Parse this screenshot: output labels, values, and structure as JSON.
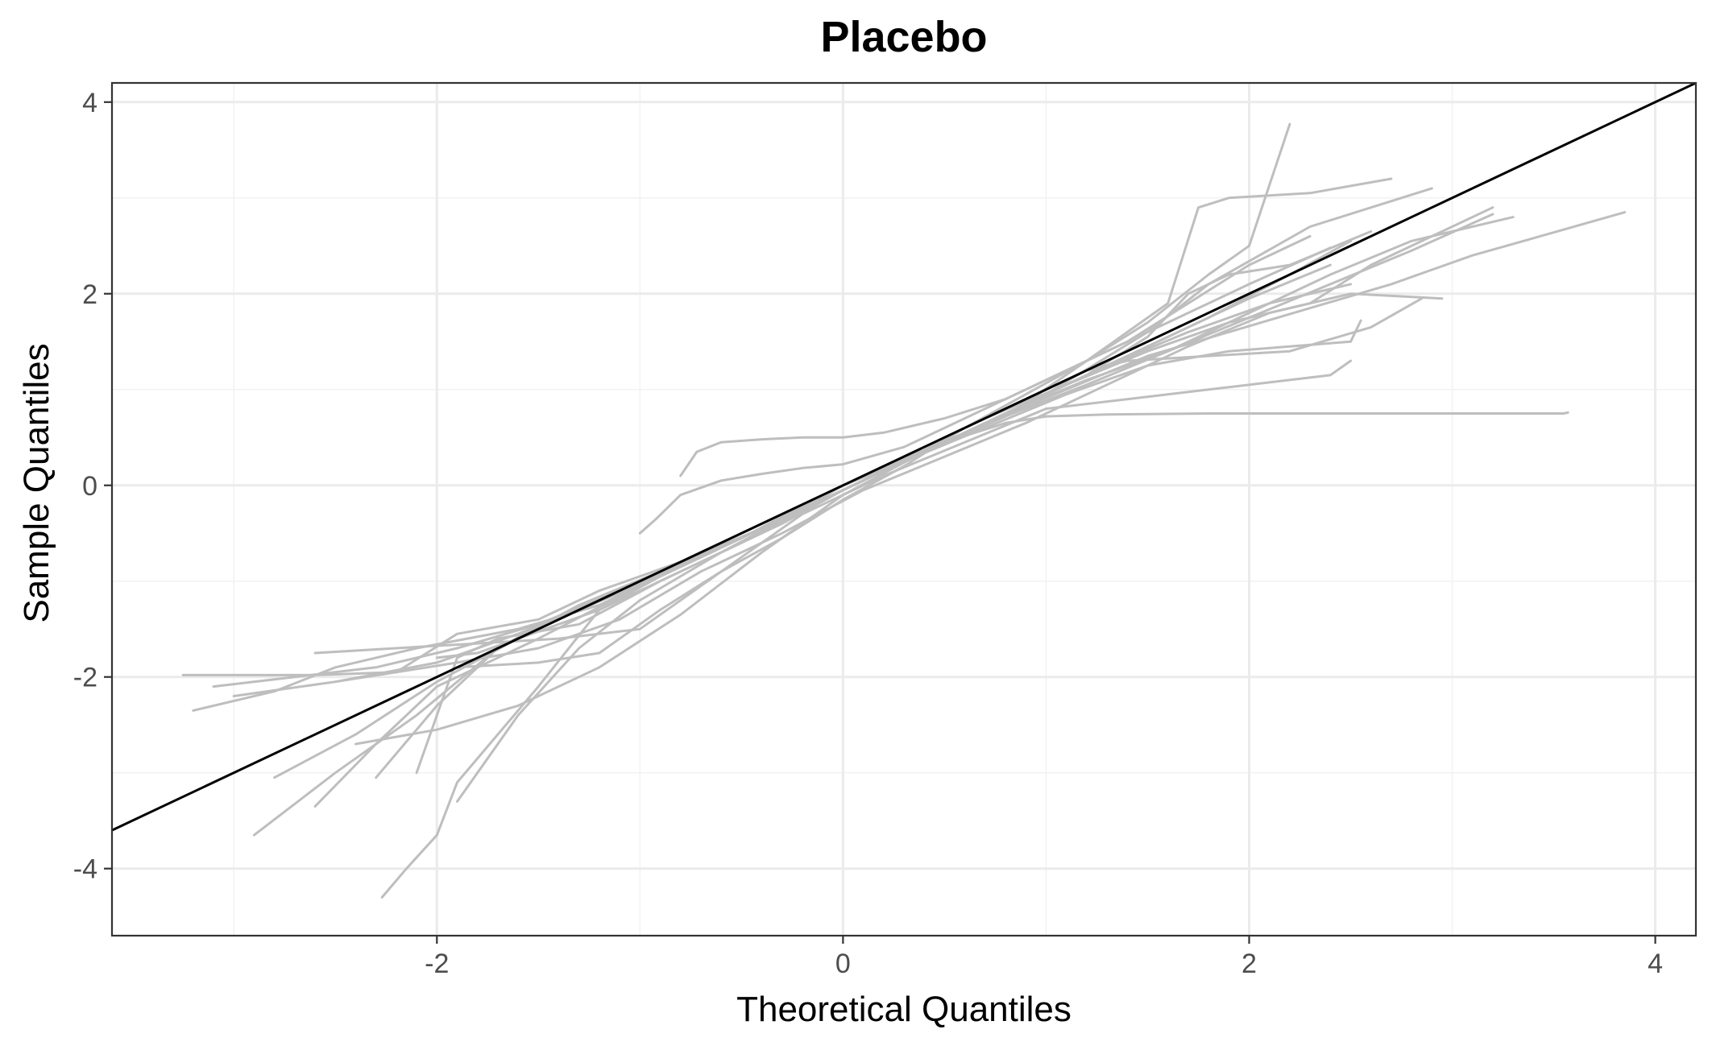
{
  "chart_data": {
    "type": "line",
    "title": "Placebo",
    "xlabel": "Theoretical Quantiles",
    "ylabel": "Sample Quantiles",
    "xlim": [
      -3.6,
      4.2
    ],
    "ylim": [
      -4.7,
      4.2
    ],
    "x_ticks": [
      -2,
      0,
      2,
      4
    ],
    "x_tick_labels": [
      "-2",
      "0",
      "2",
      "4"
    ],
    "y_ticks": [
      -4,
      -2,
      0,
      2,
      4
    ],
    "y_tick_labels": [
      "-4",
      "-2",
      "0",
      "2",
      "4"
    ],
    "x_minor": [
      -3,
      -1,
      1,
      3
    ],
    "y_minor": [
      -3,
      -1,
      1,
      3
    ],
    "grid": true,
    "legend": "none",
    "colors": {
      "series": "#bebebe",
      "reference": "#000000",
      "grid": "#ebebeb",
      "border": "#333333"
    },
    "reference_line": {
      "slope": 1.0,
      "intercept": 0.0
    },
    "series": [
      {
        "x": [
          -3.25,
          -2.6,
          -2.2,
          -1.9,
          -1.5,
          -1.2,
          -0.8,
          -0.5,
          -0.2,
          0.0,
          0.2,
          0.5,
          0.8,
          1.0,
          1.3,
          1.8,
          2.5,
          3.1,
          3.55,
          3.57
        ],
        "y": [
          -1.98,
          -1.98,
          -1.95,
          -1.55,
          -1.4,
          -1.1,
          -0.8,
          -0.5,
          -0.2,
          0.0,
          0.2,
          0.45,
          0.65,
          0.72,
          0.74,
          0.75,
          0.75,
          0.75,
          0.75,
          0.76
        ]
      },
      {
        "x": [
          -2.27,
          -2.15,
          -2.0,
          -1.9,
          -1.5,
          -1.2,
          -0.9,
          -0.5,
          -0.2,
          0.0,
          0.3,
          0.6,
          0.9,
          1.2,
          1.5,
          1.8,
          2.0,
          2.2
        ],
        "y": [
          -4.3,
          -4.0,
          -3.65,
          -3.1,
          -2.1,
          -1.3,
          -0.95,
          -0.55,
          -0.25,
          0.0,
          0.25,
          0.6,
          0.95,
          1.3,
          1.7,
          2.2,
          2.5,
          3.77
        ]
      },
      {
        "x": [
          -0.8,
          -0.72,
          -0.6,
          -0.4,
          -0.2,
          0.0,
          0.2,
          0.5,
          0.8,
          1.1,
          1.4,
          1.7,
          2.0,
          2.3
        ],
        "y": [
          0.1,
          0.35,
          0.45,
          0.48,
          0.5,
          0.5,
          0.55,
          0.7,
          0.9,
          1.2,
          1.5,
          1.9,
          2.3,
          2.6
        ]
      },
      {
        "x": [
          -1.0,
          -0.92,
          -0.8,
          -0.6,
          -0.4,
          -0.2,
          0.0,
          0.3,
          0.6,
          0.9,
          1.2,
          1.6,
          2.0,
          2.4
        ],
        "y": [
          -0.5,
          -0.35,
          -0.1,
          0.05,
          0.12,
          0.18,
          0.22,
          0.4,
          0.7,
          1.0,
          1.3,
          1.7,
          2.1,
          2.48
        ]
      },
      {
        "x": [
          -3.2,
          -2.8,
          -2.5,
          -2.1,
          -1.6,
          -1.2,
          -0.8,
          -0.4,
          0.0,
          0.4,
          0.8,
          1.2,
          1.6,
          2.0,
          2.4,
          2.8,
          3.2
        ],
        "y": [
          -2.35,
          -2.15,
          -1.9,
          -1.7,
          -1.5,
          -1.25,
          -0.85,
          -0.45,
          -0.05,
          0.35,
          0.75,
          1.1,
          1.4,
          1.75,
          2.1,
          2.45,
          2.83
        ]
      },
      {
        "x": [
          -3.0,
          -2.5,
          -2.0,
          -1.6,
          -1.2,
          -0.8,
          -0.4,
          0.0,
          0.4,
          0.8,
          1.2,
          1.6,
          2.0,
          2.4,
          2.8,
          3.3
        ],
        "y": [
          -2.2,
          -2.05,
          -1.85,
          -1.55,
          -1.2,
          -0.85,
          -0.45,
          -0.05,
          0.35,
          0.72,
          1.05,
          1.4,
          1.8,
          2.2,
          2.55,
          2.8
        ]
      },
      {
        "x": [
          -2.9,
          -2.5,
          -2.1,
          -1.7,
          -1.3,
          -0.9,
          -0.5,
          -0.1,
          0.3,
          0.7,
          1.1,
          1.5,
          1.9,
          2.3,
          2.7,
          3.1,
          3.85
        ],
        "y": [
          -3.65,
          -3.0,
          -2.4,
          -1.7,
          -1.25,
          -0.9,
          -0.55,
          -0.15,
          0.25,
          0.65,
          1.0,
          1.35,
          1.6,
          1.85,
          2.1,
          2.4,
          2.85
        ]
      },
      {
        "x": [
          -2.8,
          -2.4,
          -2.0,
          -1.6,
          -1.2,
          -0.8,
          -0.4,
          0.0,
          0.4,
          0.8,
          1.2,
          1.6,
          1.75,
          1.9,
          2.3,
          2.7
        ],
        "y": [
          -3.05,
          -2.6,
          -2.05,
          -1.6,
          -1.2,
          -0.8,
          -0.45,
          0.0,
          0.35,
          0.72,
          1.3,
          1.9,
          2.9,
          3.0,
          3.05,
          3.2
        ]
      },
      {
        "x": [
          -2.6,
          -2.3,
          -2.0,
          -1.5,
          -1.0,
          -0.5,
          0.0,
          0.5,
          1.0,
          1.5,
          1.8,
          2.3,
          2.9
        ],
        "y": [
          -3.35,
          -2.7,
          -2.1,
          -1.6,
          -1.05,
          -0.55,
          -0.05,
          0.45,
          0.95,
          1.6,
          2.1,
          2.7,
          3.1
        ]
      },
      {
        "x": [
          -2.5,
          -2.2,
          -1.9,
          -1.5,
          -1.1,
          -0.7,
          -0.3,
          0.1,
          0.5,
          0.9,
          1.3,
          1.7,
          2.1,
          2.5,
          2.95
        ],
        "y": [
          -2.05,
          -1.95,
          -1.85,
          -1.7,
          -1.4,
          -0.9,
          -0.5,
          -0.05,
          0.3,
          0.65,
          1.05,
          1.45,
          1.8,
          2.0,
          1.95
        ]
      },
      {
        "x": [
          -2.1,
          -1.9,
          -1.7,
          -1.3,
          -0.9,
          -0.5,
          -0.1,
          0.3,
          0.7,
          1.1,
          1.5,
          1.9,
          2.2,
          2.5,
          2.55
        ],
        "y": [
          -3.0,
          -1.8,
          -1.6,
          -1.45,
          -1.0,
          -0.6,
          -0.15,
          0.25,
          0.6,
          0.95,
          1.25,
          1.4,
          1.45,
          1.5,
          1.72
        ]
      },
      {
        "x": [
          -2.3,
          -2.0,
          -1.7,
          -1.3,
          -0.9,
          -0.5,
          -0.1,
          0.3,
          0.7,
          1.1,
          1.5,
          1.9,
          2.3,
          2.6,
          2.9,
          3.2
        ],
        "y": [
          -3.05,
          -2.3,
          -1.7,
          -1.3,
          -0.95,
          -0.55,
          -0.1,
          0.3,
          0.7,
          1.05,
          1.4,
          1.7,
          1.9,
          2.3,
          2.6,
          2.9
        ]
      },
      {
        "x": [
          -1.9,
          -1.6,
          -1.3,
          -1.0,
          -0.6,
          -0.2,
          0.2,
          0.6,
          1.0,
          1.4,
          1.8,
          2.2,
          2.5
        ],
        "y": [
          -3.3,
          -2.4,
          -1.7,
          -1.2,
          -0.7,
          -0.25,
          0.15,
          0.55,
          0.95,
          1.35,
          1.75,
          2.2,
          2.55
        ]
      },
      {
        "x": [
          -2.4,
          -2.0,
          -1.6,
          -1.2,
          -0.8,
          -0.4,
          0.0,
          0.4,
          0.8,
          1.2,
          1.6,
          2.0,
          2.4
        ],
        "y": [
          -2.7,
          -2.55,
          -2.3,
          -1.9,
          -1.35,
          -0.7,
          -0.1,
          0.35,
          0.75,
          1.15,
          1.55,
          1.95,
          2.3
        ]
      },
      {
        "x": [
          -3.1,
          -2.7,
          -2.3,
          -1.9,
          -1.5,
          -1.1,
          -0.7,
          -0.3,
          0.1,
          0.5,
          0.9,
          1.3,
          1.7,
          2.1,
          2.5
        ],
        "y": [
          -2.1,
          -2.0,
          -1.9,
          -1.7,
          -1.45,
          -1.1,
          -0.75,
          -0.35,
          0.05,
          0.45,
          0.85,
          1.25,
          1.6,
          1.9,
          2.1
        ]
      },
      {
        "x": [
          -2.0,
          -1.8,
          -1.6,
          -1.2,
          -0.9,
          -0.6,
          -0.3,
          0.0,
          0.3,
          0.6,
          0.9,
          1.2,
          1.5,
          1.7,
          1.9,
          2.2,
          2.6
        ],
        "y": [
          -1.8,
          -1.75,
          -1.6,
          -1.3,
          -1.0,
          -0.7,
          -0.4,
          -0.05,
          0.25,
          0.55,
          0.85,
          1.15,
          1.55,
          2.0,
          2.2,
          2.3,
          2.65
        ]
      },
      {
        "x": [
          -1.9,
          -1.5,
          -1.2,
          -0.9,
          -0.6,
          -0.3,
          0.0,
          0.3,
          0.6,
          0.9,
          1.2,
          1.4,
          1.8,
          2.2,
          2.6,
          2.85
        ],
        "y": [
          -1.9,
          -1.85,
          -1.75,
          -1.3,
          -0.9,
          -0.55,
          -0.15,
          0.2,
          0.6,
          0.9,
          1.2,
          1.3,
          1.35,
          1.4,
          1.65,
          1.95
        ]
      },
      {
        "x": [
          -2.6,
          -2.2,
          -1.8,
          -1.4,
          -1.0,
          -0.6,
          -0.2,
          0.2,
          0.6,
          1.0,
          1.4,
          1.8,
          2.2,
          2.4,
          2.5
        ],
        "y": [
          -1.75,
          -1.7,
          -1.65,
          -1.6,
          -1.5,
          -0.9,
          -0.3,
          0.1,
          0.45,
          0.8,
          0.9,
          1.0,
          1.1,
          1.15,
          1.3
        ]
      }
    ]
  }
}
